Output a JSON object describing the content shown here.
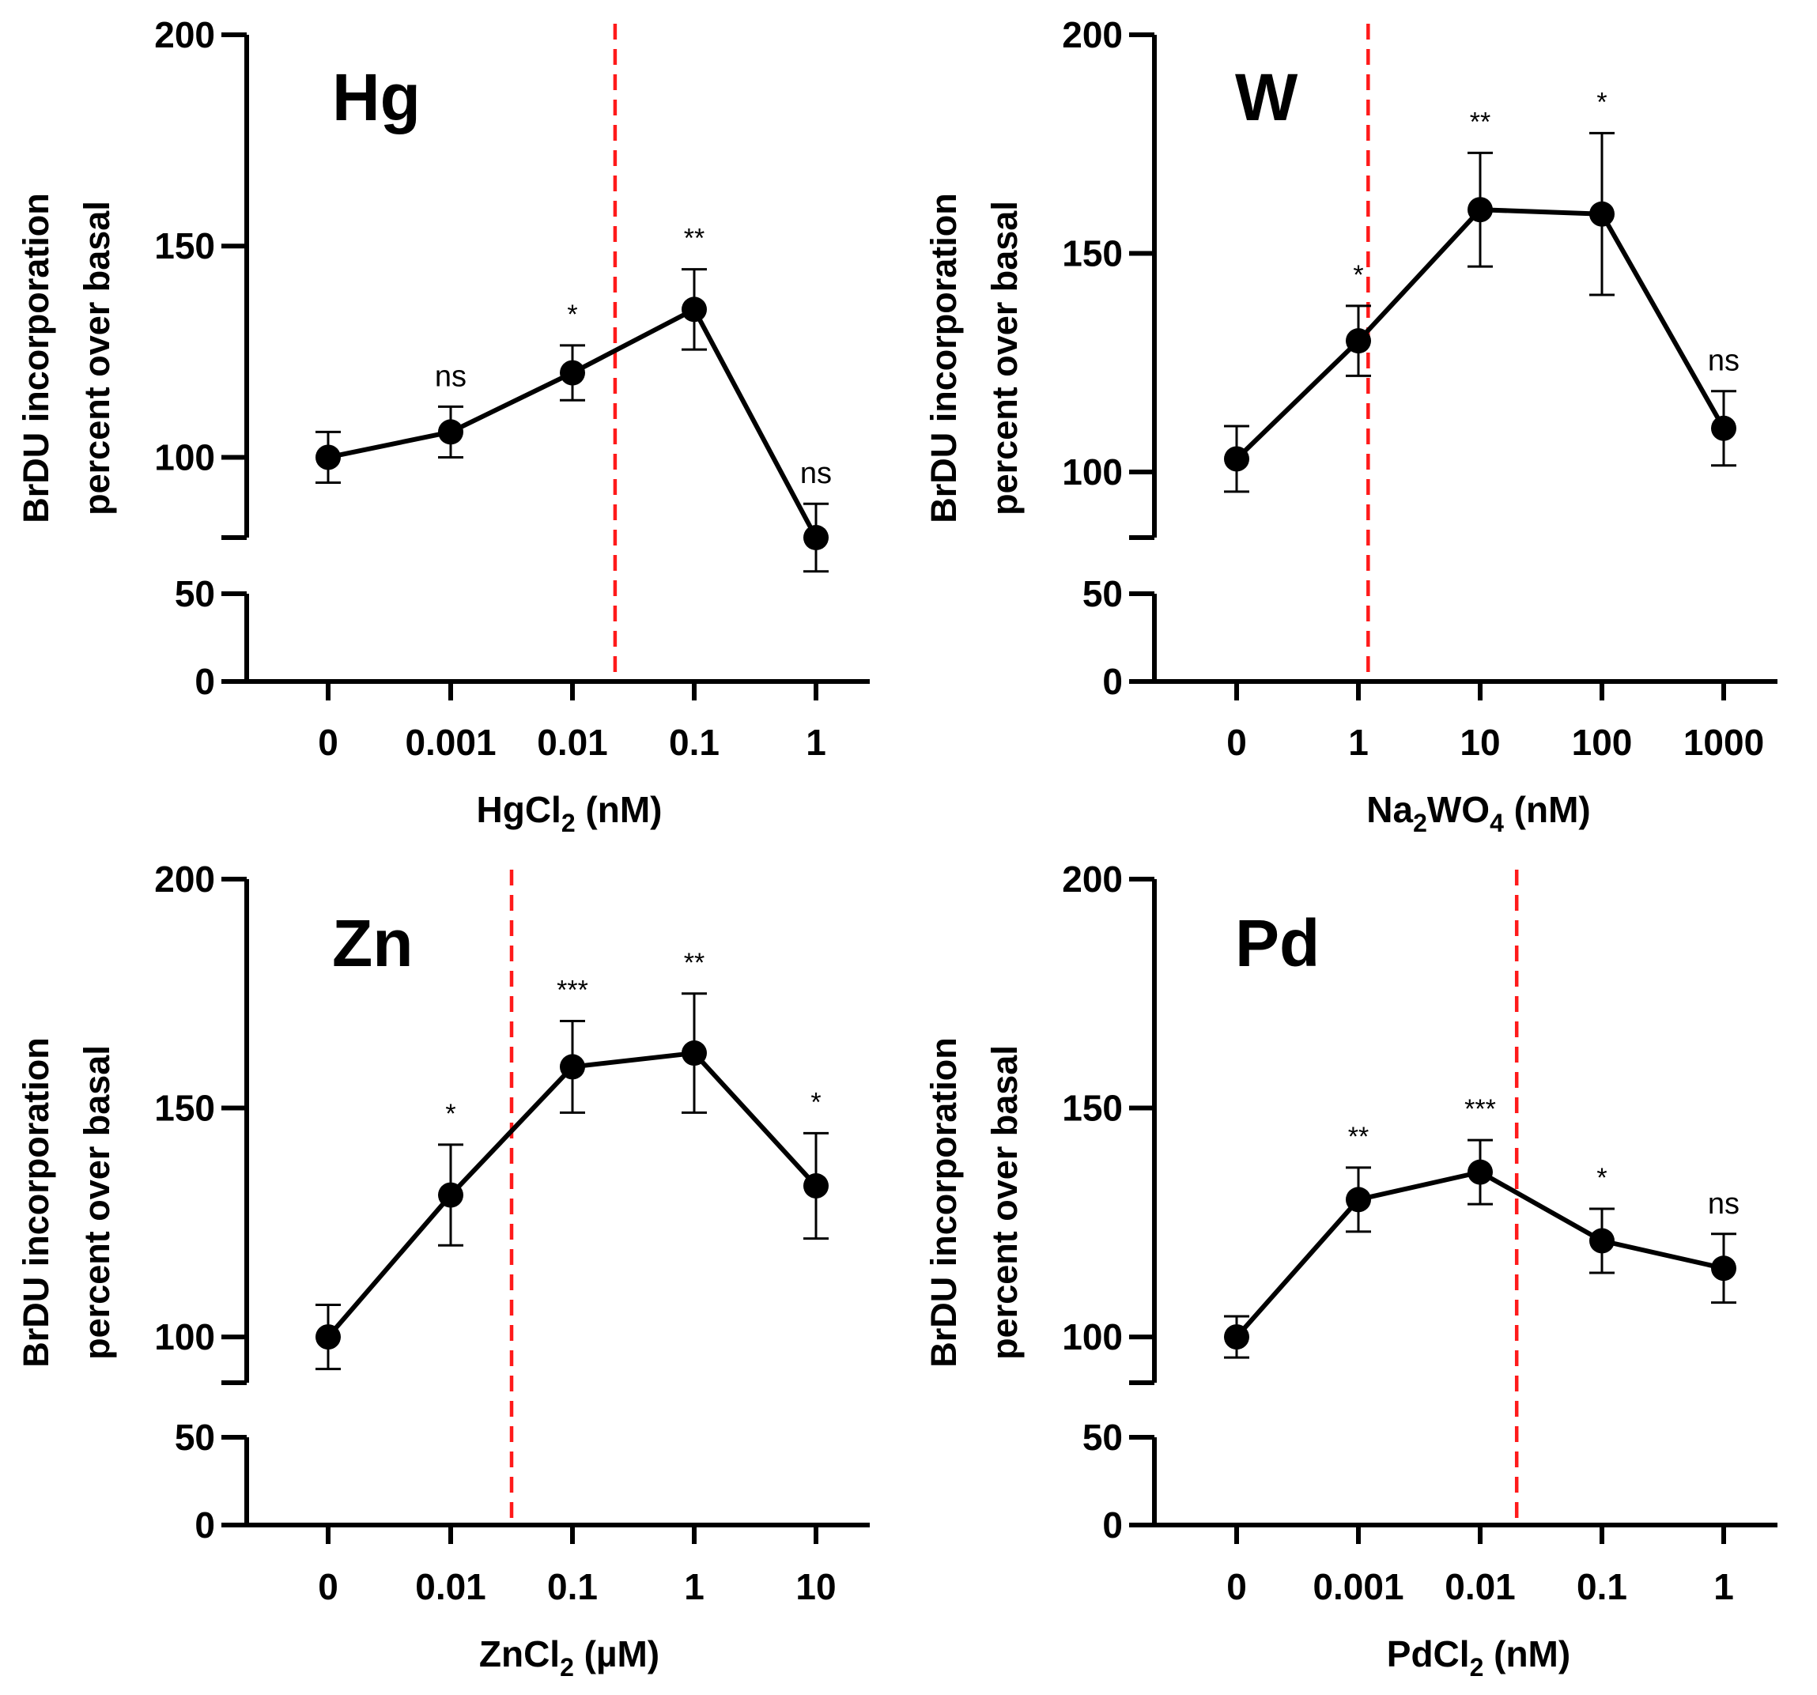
{
  "chart_data": [
    {
      "type": "line",
      "panel_title": "Hg",
      "xlabel_main": "HgCl",
      "xlabel_sub": "2",
      "xlabel_tail": " (nM)",
      "ylabel_line1": "BrDU incorporation",
      "ylabel_line2": "percent over basal",
      "categories": [
        "0",
        "0.001",
        "0.01",
        "0.1",
        "1"
      ],
      "values": [
        100,
        106,
        120,
        135,
        81
      ],
      "error": [
        6,
        6,
        6.5,
        9.5,
        8
      ],
      "significance": [
        "",
        "ns",
        "*",
        "**",
        "ns"
      ],
      "reference_line_position": 2.35,
      "y_upper_segment": [
        81,
        200
      ],
      "y_lower_segment": [
        0,
        50
      ],
      "y_upper_ticks": [
        100,
        150,
        200
      ],
      "y_upper_tick_labels": [
        "100",
        "150",
        "200"
      ],
      "y_lower_ticks": [
        0,
        50
      ],
      "y_lower_tick_labels": [
        "0",
        "50"
      ]
    },
    {
      "type": "line",
      "panel_title": "W",
      "xlabel_main": "Na",
      "xlabel_sub": "2",
      "xlabel_mid": "WO",
      "xlabel_sub2": "4",
      "xlabel_tail": " (nM)",
      "ylabel_line1": "BrDU incorporation",
      "ylabel_line2": "percent over basal",
      "categories": [
        "0",
        "1",
        "10",
        "100",
        "1000"
      ],
      "values": [
        103,
        130,
        160,
        159,
        110
      ],
      "error": [
        7.5,
        8,
        13,
        18.5,
        8.5
      ],
      "significance": [
        "",
        "*",
        "**",
        "*",
        "ns"
      ],
      "reference_line_position": 1.08,
      "y_upper_segment": [
        85,
        200
      ],
      "y_lower_segment": [
        0,
        50
      ],
      "y_upper_ticks": [
        100,
        150,
        200
      ],
      "y_upper_tick_labels": [
        "100",
        "150",
        "200"
      ],
      "y_lower_ticks": [
        0,
        50
      ],
      "y_lower_tick_labels": [
        "0",
        "50"
      ]
    },
    {
      "type": "line",
      "panel_title": "Zn",
      "xlabel_main": "ZnCl",
      "xlabel_sub": "2",
      "xlabel_tail": " (µM)",
      "ylabel_line1": "BrDU incorporation",
      "ylabel_line2": "percent over basal",
      "categories": [
        "0",
        "0.01",
        "0.1",
        "1",
        "10"
      ],
      "values": [
        100,
        131,
        159,
        162,
        133
      ],
      "error": [
        7,
        11,
        10,
        13,
        11.5
      ],
      "significance": [
        "",
        "*",
        "***",
        "**",
        "*"
      ],
      "reference_line_position": 1.5,
      "y_upper_segment": [
        90,
        200
      ],
      "y_lower_segment": [
        0,
        50
      ],
      "y_upper_ticks": [
        100,
        150,
        200
      ],
      "y_upper_tick_labels": [
        "100",
        "150",
        "200"
      ],
      "y_lower_ticks": [
        0,
        50
      ],
      "y_lower_tick_labels": [
        "0",
        "50"
      ]
    },
    {
      "type": "line",
      "panel_title": "Pd",
      "xlabel_main": "PdCl",
      "xlabel_sub": "2",
      "xlabel_tail": " (nM)",
      "ylabel_line1": "BrDU incorporation",
      "ylabel_line2": "percent over basal",
      "categories": [
        "0",
        "0.001",
        "0.01",
        "0.1",
        "1"
      ],
      "values": [
        100,
        130,
        136,
        121,
        115
      ],
      "error": [
        4.5,
        7,
        7,
        7,
        7.5
      ],
      "significance": [
        "",
        "**",
        "***",
        "*",
        "ns"
      ],
      "reference_line_position": 2.3,
      "y_upper_segment": [
        90,
        200
      ],
      "y_lower_segment": [
        0,
        50
      ],
      "y_upper_ticks": [
        100,
        150,
        200
      ],
      "y_upper_tick_labels": [
        "100",
        "150",
        "200"
      ],
      "y_lower_ticks": [
        0,
        50
      ],
      "y_lower_tick_labels": [
        "0",
        "50"
      ]
    }
  ]
}
